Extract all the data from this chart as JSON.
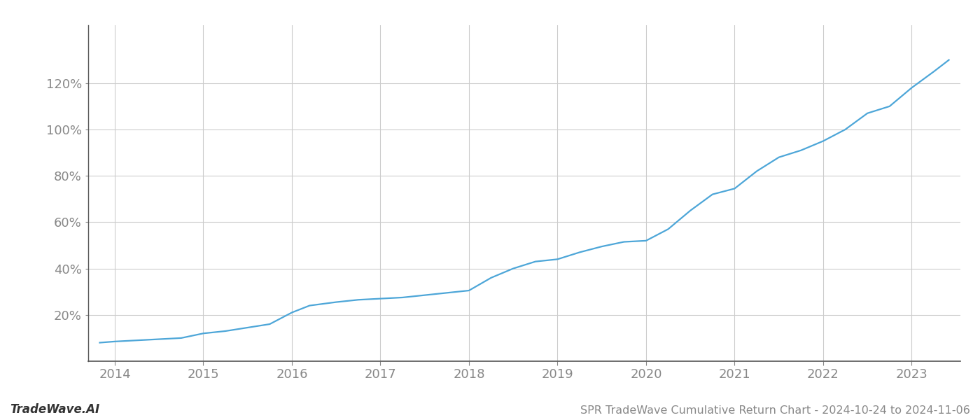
{
  "x_years": [
    2013.83,
    2014.0,
    2014.25,
    2014.5,
    2014.75,
    2015.0,
    2015.25,
    2015.5,
    2015.75,
    2016.0,
    2016.2,
    2016.5,
    2016.75,
    2017.0,
    2017.25,
    2017.5,
    2017.75,
    2018.0,
    2018.25,
    2018.5,
    2018.75,
    2019.0,
    2019.25,
    2019.5,
    2019.75,
    2020.0,
    2020.25,
    2020.5,
    2020.75,
    2021.0,
    2021.25,
    2021.5,
    2021.75,
    2022.0,
    2022.25,
    2022.5,
    2022.75,
    2023.0,
    2023.25,
    2023.42
  ],
  "y_values": [
    8.0,
    8.5,
    9.0,
    9.5,
    10.0,
    12.0,
    13.0,
    14.5,
    16.0,
    21.0,
    24.0,
    25.5,
    26.5,
    27.0,
    27.5,
    28.5,
    29.5,
    30.5,
    36.0,
    40.0,
    43.0,
    44.0,
    47.0,
    49.5,
    51.5,
    52.0,
    57.0,
    65.0,
    72.0,
    74.5,
    82.0,
    88.0,
    91.0,
    95.0,
    100.0,
    107.0,
    110.0,
    118.0,
    125.0,
    130.0
  ],
  "line_color": "#4da6d8",
  "line_width": 1.6,
  "background_color": "#ffffff",
  "grid_color": "#cccccc",
  "title": "SPR TradeWave Cumulative Return Chart - 2024-10-24 to 2024-11-06",
  "watermark": "TradeWave.AI",
  "x_tick_labels": [
    "2014",
    "2015",
    "2016",
    "2017",
    "2018",
    "2019",
    "2020",
    "2021",
    "2022",
    "2023"
  ],
  "x_tick_positions": [
    2014,
    2015,
    2016,
    2017,
    2018,
    2019,
    2020,
    2021,
    2022,
    2023
  ],
  "y_tick_labels": [
    "20%",
    "40%",
    "60%",
    "80%",
    "100%",
    "120%"
  ],
  "y_tick_positions": [
    20,
    40,
    60,
    80,
    100,
    120
  ],
  "xlim": [
    2013.7,
    2023.55
  ],
  "ylim": [
    0,
    145
  ],
  "title_fontsize": 11.5,
  "tick_fontsize": 13,
  "watermark_fontsize": 12
}
